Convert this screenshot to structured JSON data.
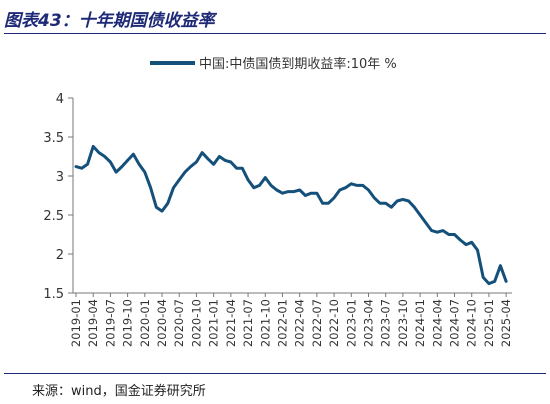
{
  "figure": {
    "title": "图表43：十年期国债收益率",
    "source": "来源：wind，国金证券研究所"
  },
  "colors": {
    "line": "#14507a",
    "title": "#1e2a78"
  },
  "chart_data": {
    "type": "line",
    "title": "",
    "xlabel": "",
    "ylabel": "",
    "ylim": [
      1.5,
      4
    ],
    "yticks": [
      "1.5",
      "2",
      "2.5",
      "3",
      "3.5",
      "4"
    ],
    "xticks": [
      "2019-01",
      "2019-04",
      "2019-07",
      "2019-10",
      "2020-01",
      "2020-04",
      "2020-07",
      "2020-10",
      "2021-01",
      "2021-04",
      "2021-07",
      "2021-10",
      "2022-01",
      "2022-04",
      "2022-07",
      "2022-10",
      "2023-01",
      "2023-04",
      "2023-07",
      "2023-10",
      "2024-01",
      "2024-04",
      "2024-07",
      "2024-10",
      "2025-01",
      "2025-04"
    ],
    "legend_position": "top",
    "grid": false,
    "series": [
      {
        "name": "中国:中债国债到期收益率:10年 %",
        "x": [
          "2019-01",
          "2019-02",
          "2019-03",
          "2019-04",
          "2019-05",
          "2019-06",
          "2019-07",
          "2019-08",
          "2019-09",
          "2019-10",
          "2019-11",
          "2019-12",
          "2020-01",
          "2020-02",
          "2020-03",
          "2020-04",
          "2020-05",
          "2020-06",
          "2020-07",
          "2020-08",
          "2020-09",
          "2020-10",
          "2020-11",
          "2020-12",
          "2021-01",
          "2021-02",
          "2021-03",
          "2021-04",
          "2021-05",
          "2021-06",
          "2021-07",
          "2021-08",
          "2021-09",
          "2021-10",
          "2021-11",
          "2021-12",
          "2022-01",
          "2022-02",
          "2022-03",
          "2022-04",
          "2022-05",
          "2022-06",
          "2022-07",
          "2022-08",
          "2022-09",
          "2022-10",
          "2022-11",
          "2022-12",
          "2023-01",
          "2023-02",
          "2023-03",
          "2023-04",
          "2023-05",
          "2023-06",
          "2023-07",
          "2023-08",
          "2023-09",
          "2023-10",
          "2023-11",
          "2023-12",
          "2024-01",
          "2024-02",
          "2024-03",
          "2024-04",
          "2024-05",
          "2024-06",
          "2024-07",
          "2024-08",
          "2024-09",
          "2024-10",
          "2024-11",
          "2024-12",
          "2025-01",
          "2025-02",
          "2025-03",
          "2025-04"
        ],
        "values": [
          3.12,
          3.1,
          3.15,
          3.38,
          3.3,
          3.25,
          3.18,
          3.05,
          3.12,
          3.2,
          3.28,
          3.15,
          3.05,
          2.85,
          2.6,
          2.55,
          2.65,
          2.85,
          2.95,
          3.05,
          3.12,
          3.18,
          3.3,
          3.22,
          3.15,
          3.25,
          3.2,
          3.18,
          3.1,
          3.1,
          2.95,
          2.85,
          2.88,
          2.98,
          2.88,
          2.82,
          2.78,
          2.8,
          2.8,
          2.82,
          2.75,
          2.78,
          2.78,
          2.65,
          2.65,
          2.72,
          2.82,
          2.85,
          2.9,
          2.88,
          2.88,
          2.82,
          2.72,
          2.65,
          2.65,
          2.6,
          2.68,
          2.7,
          2.68,
          2.6,
          2.5,
          2.4,
          2.3,
          2.28,
          2.3,
          2.25,
          2.25,
          2.18,
          2.12,
          2.15,
          2.05,
          1.7,
          1.62,
          1.65,
          1.85,
          1.65
        ]
      }
    ]
  }
}
